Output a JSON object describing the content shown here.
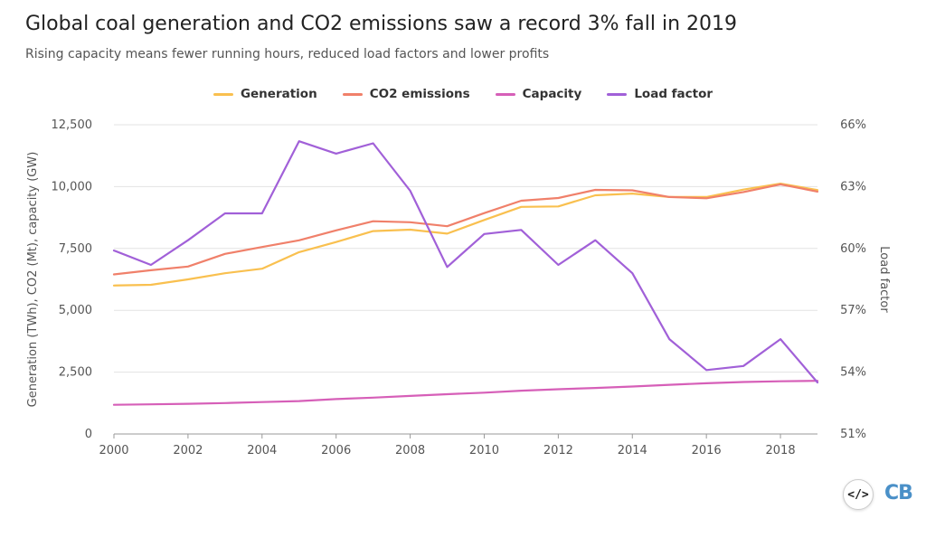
{
  "title": "Global coal generation and CO2 emissions saw a record 3% fall in 2019",
  "subtitle": "Rising capacity means fewer running hours, reduced load factors and lower profits",
  "logos": {
    "code_icon": "</>",
    "brand": "CB"
  },
  "chart_data": {
    "type": "line",
    "x": [
      2000,
      2001,
      2002,
      2003,
      2004,
      2005,
      2006,
      2007,
      2008,
      2009,
      2010,
      2011,
      2012,
      2013,
      2014,
      2015,
      2016,
      2017,
      2018,
      2019
    ],
    "series": [
      {
        "name": "Generation",
        "axis": "left",
        "color": "#f9c04f",
        "values": [
          6000,
          6030,
          6250,
          6500,
          6680,
          7350,
          7760,
          8200,
          8260,
          8100,
          8650,
          9180,
          9200,
          9650,
          9720,
          9580,
          9580,
          9880,
          10120,
          9860
        ]
      },
      {
        "name": "CO2 emissions",
        "axis": "left",
        "color": "#f0806a",
        "values": [
          6450,
          6620,
          6770,
          7280,
          7560,
          7830,
          8230,
          8600,
          8560,
          8400,
          8930,
          9430,
          9540,
          9870,
          9850,
          9580,
          9530,
          9780,
          10090,
          9800
        ]
      },
      {
        "name": "Capacity",
        "axis": "left",
        "color": "#d65fb8",
        "values": [
          1180,
          1200,
          1220,
          1250,
          1290,
          1330,
          1410,
          1470,
          1540,
          1610,
          1670,
          1750,
          1810,
          1860,
          1920,
          1990,
          2050,
          2100,
          2130,
          2150
        ]
      },
      {
        "name": "Load factor",
        "axis": "right",
        "color": "#a160d8",
        "values": [
          59.9,
          59.2,
          60.4,
          61.7,
          61.7,
          65.2,
          64.6,
          65.1,
          62.8,
          59.1,
          60.7,
          60.9,
          59.2,
          60.4,
          58.8,
          55.6,
          54.1,
          54.3,
          55.6,
          53.5
        ]
      }
    ],
    "xlabel": "",
    "ylabel_left": "Generation (TWh), CO2 (Mt), capacity (GW)",
    "ylabel_right": "Load factor",
    "ylim_left": [
      0,
      12500
    ],
    "ylim_right": [
      51,
      66
    ],
    "x_ticks": [
      "2000",
      "2002",
      "2004",
      "2006",
      "2008",
      "2010",
      "2012",
      "2014",
      "2016",
      "2018"
    ],
    "y_ticks_left": [
      "0",
      "2,500",
      "5,000",
      "7,500",
      "10,000",
      "12,500"
    ],
    "y_ticks_right": [
      "51%",
      "54%",
      "57%",
      "60%",
      "63%",
      "66%"
    ],
    "grid": true,
    "legend_position": "top-center"
  }
}
